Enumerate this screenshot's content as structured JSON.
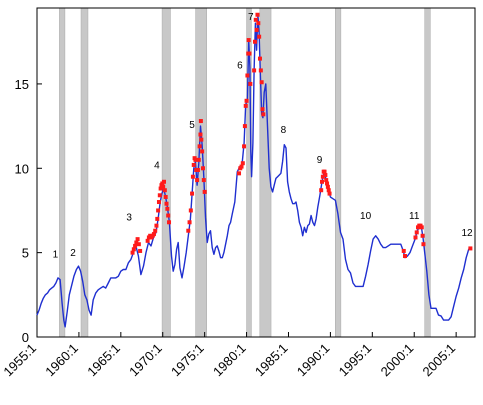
{
  "chart_data": {
    "type": "line",
    "title": "",
    "xlabel": "",
    "ylabel": "",
    "xlim": [
      1955.0,
      2007.25
    ],
    "ylim": [
      0,
      19.5
    ],
    "x_ticks": [
      "1955:1",
      "1960:1",
      "1965:1",
      "1970:1",
      "1975:1",
      "1980:1",
      "1985:1",
      "1990:1",
      "1995:1",
      "2000:1",
      "2005:1"
    ],
    "x_tick_values": [
      1955,
      1960,
      1965,
      1970,
      1975,
      1980,
      1985,
      1990,
      1995,
      2000,
      2005
    ],
    "y_ticks": [
      0,
      5,
      10,
      15
    ],
    "grid": false,
    "colors": {
      "line": "#1f2fd0",
      "markers": "#ff1a1a",
      "bands": "#c8c8c8"
    },
    "recession_bands": [
      [
        1957.67,
        1958.33
      ],
      [
        1960.25,
        1961.08
      ],
      [
        1969.92,
        1970.92
      ],
      [
        1973.92,
        1975.25
      ],
      [
        1980.0,
        1980.58
      ],
      [
        1981.58,
        1982.92
      ],
      [
        1990.58,
        1991.25
      ],
      [
        2001.25,
        2001.92
      ]
    ],
    "peak_labels": [
      {
        "text": "1",
        "x": 1957.2,
        "y": 4.7
      },
      {
        "text": "2",
        "x": 1959.3,
        "y": 4.8
      },
      {
        "text": "3",
        "x": 1966.0,
        "y": 6.9
      },
      {
        "text": "4",
        "x": 1969.3,
        "y": 10.0
      },
      {
        "text": "5",
        "x": 1973.5,
        "y": 12.4
      },
      {
        "text": "6",
        "x": 1979.2,
        "y": 15.9
      },
      {
        "text": "7",
        "x": 1980.5,
        "y": 18.8
      },
      {
        "text": "8",
        "x": 1984.4,
        "y": 12.1
      },
      {
        "text": "9",
        "x": 1988.7,
        "y": 10.3
      },
      {
        "text": "10",
        "x": 1994.2,
        "y": 7.0
      },
      {
        "text": "11",
        "x": 2000.0,
        "y": 7.0
      },
      {
        "text": "12",
        "x": 2006.3,
        "y": 6.0
      }
    ],
    "series": [
      {
        "values": [
          [
            1955.0,
            1.3
          ],
          [
            1955.25,
            1.6
          ],
          [
            1955.5,
            2.0
          ],
          [
            1955.75,
            2.3
          ],
          [
            1956.0,
            2.5
          ],
          [
            1956.25,
            2.6
          ],
          [
            1956.5,
            2.8
          ],
          [
            1956.75,
            2.9
          ],
          [
            1957.0,
            3.0
          ],
          [
            1957.25,
            3.2
          ],
          [
            1957.5,
            3.5
          ],
          [
            1957.75,
            3.4
          ],
          [
            1958.0,
            2.0
          ],
          [
            1958.2,
            1.0
          ],
          [
            1958.35,
            0.6
          ],
          [
            1958.6,
            1.5
          ],
          [
            1958.85,
            2.5
          ],
          [
            1959.1,
            3.0
          ],
          [
            1959.4,
            3.6
          ],
          [
            1959.7,
            4.0
          ],
          [
            1959.95,
            4.2
          ],
          [
            1960.2,
            3.9
          ],
          [
            1960.45,
            3.3
          ],
          [
            1960.7,
            2.5
          ],
          [
            1960.95,
            2.2
          ],
          [
            1961.2,
            1.6
          ],
          [
            1961.45,
            1.3
          ],
          [
            1961.7,
            2.2
          ],
          [
            1962.0,
            2.6
          ],
          [
            1962.3,
            2.8
          ],
          [
            1962.6,
            2.9
          ],
          [
            1962.9,
            3.0
          ],
          [
            1963.2,
            2.9
          ],
          [
            1963.5,
            3.2
          ],
          [
            1963.8,
            3.5
          ],
          [
            1964.1,
            3.5
          ],
          [
            1964.4,
            3.5
          ],
          [
            1964.7,
            3.6
          ],
          [
            1965.0,
            3.9
          ],
          [
            1965.3,
            4.0
          ],
          [
            1965.6,
            4.0
          ],
          [
            1965.9,
            4.4
          ],
          [
            1966.2,
            4.6
          ],
          [
            1966.5,
            5.0
          ],
          [
            1966.8,
            5.4
          ],
          [
            1967.1,
            4.8
          ],
          [
            1967.4,
            3.7
          ],
          [
            1967.7,
            4.2
          ],
          [
            1968.0,
            5.0
          ],
          [
            1968.3,
            5.6
          ],
          [
            1968.6,
            5.4
          ],
          [
            1968.9,
            5.9
          ],
          [
            1969.2,
            6.2
          ],
          [
            1969.45,
            7.0
          ],
          [
            1969.7,
            8.0
          ],
          [
            1969.9,
            8.5
          ],
          [
            1970.1,
            8.8
          ],
          [
            1970.3,
            8.4
          ],
          [
            1970.55,
            7.7
          ],
          [
            1970.8,
            6.8
          ],
          [
            1971.05,
            4.8
          ],
          [
            1971.25,
            3.9
          ],
          [
            1971.45,
            4.3
          ],
          [
            1971.65,
            5.2
          ],
          [
            1971.85,
            5.6
          ],
          [
            1972.05,
            4.1
          ],
          [
            1972.3,
            3.5
          ],
          [
            1972.55,
            4.2
          ],
          [
            1972.8,
            5.0
          ],
          [
            1973.05,
            6.0
          ],
          [
            1973.3,
            7.0
          ],
          [
            1973.5,
            8.5
          ],
          [
            1973.7,
            10.0
          ],
          [
            1973.9,
            10.4
          ],
          [
            1974.1,
            9.0
          ],
          [
            1974.3,
            10.3
          ],
          [
            1974.5,
            12.5
          ],
          [
            1974.7,
            11.4
          ],
          [
            1974.9,
            9.5
          ],
          [
            1975.1,
            7.1
          ],
          [
            1975.3,
            5.6
          ],
          [
            1975.5,
            6.1
          ],
          [
            1975.7,
            6.3
          ],
          [
            1975.9,
            5.3
          ],
          [
            1976.1,
            4.9
          ],
          [
            1976.3,
            5.3
          ],
          [
            1976.5,
            5.4
          ],
          [
            1976.7,
            5.1
          ],
          [
            1976.9,
            4.7
          ],
          [
            1977.1,
            4.7
          ],
          [
            1977.3,
            5.0
          ],
          [
            1977.5,
            5.5
          ],
          [
            1977.7,
            6.0
          ],
          [
            1977.9,
            6.6
          ],
          [
            1978.1,
            6.8
          ],
          [
            1978.3,
            7.3
          ],
          [
            1978.6,
            8.0
          ],
          [
            1978.9,
            9.8
          ],
          [
            1979.2,
            10.1
          ],
          [
            1979.45,
            10.2
          ],
          [
            1979.7,
            11.5
          ],
          [
            1979.9,
            13.8
          ],
          [
            1980.1,
            14.0
          ],
          [
            1980.25,
            17.6
          ],
          [
            1980.4,
            16.0
          ],
          [
            1980.5,
            11.0
          ],
          [
            1980.6,
            9.5
          ],
          [
            1980.75,
            11.5
          ],
          [
            1980.9,
            15.8
          ],
          [
            1981.05,
            18.6
          ],
          [
            1981.2,
            17.0
          ],
          [
            1981.35,
            19.1
          ],
          [
            1981.5,
            18.0
          ],
          [
            1981.65,
            15.5
          ],
          [
            1981.8,
            13.2
          ],
          [
            1981.95,
            13.0
          ],
          [
            1982.1,
            14.5
          ],
          [
            1982.3,
            15.0
          ],
          [
            1982.5,
            12.5
          ],
          [
            1982.7,
            10.0
          ],
          [
            1982.9,
            8.9
          ],
          [
            1983.1,
            8.6
          ],
          [
            1983.3,
            9.0
          ],
          [
            1983.5,
            9.4
          ],
          [
            1983.7,
            9.5
          ],
          [
            1983.9,
            9.6
          ],
          [
            1984.1,
            9.7
          ],
          [
            1984.3,
            10.4
          ],
          [
            1984.5,
            11.4
          ],
          [
            1984.7,
            11.2
          ],
          [
            1984.9,
            9.2
          ],
          [
            1985.1,
            8.6
          ],
          [
            1985.3,
            8.2
          ],
          [
            1985.5,
            7.9
          ],
          [
            1985.7,
            7.9
          ],
          [
            1985.9,
            8.0
          ],
          [
            1986.1,
            7.5
          ],
          [
            1986.3,
            6.8
          ],
          [
            1986.5,
            6.5
          ],
          [
            1986.7,
            6.0
          ],
          [
            1986.9,
            6.5
          ],
          [
            1987.1,
            6.2
          ],
          [
            1987.3,
            6.6
          ],
          [
            1987.5,
            6.7
          ],
          [
            1987.7,
            7.2
          ],
          [
            1987.9,
            6.8
          ],
          [
            1988.1,
            6.6
          ],
          [
            1988.3,
            7.0
          ],
          [
            1988.5,
            7.7
          ],
          [
            1988.75,
            8.4
          ],
          [
            1989.0,
            9.2
          ],
          [
            1989.25,
            9.8
          ],
          [
            1989.5,
            9.3
          ],
          [
            1989.75,
            8.8
          ],
          [
            1990.0,
            8.3
          ],
          [
            1990.3,
            8.2
          ],
          [
            1990.6,
            8.1
          ],
          [
            1990.9,
            7.3
          ],
          [
            1991.2,
            6.2
          ],
          [
            1991.5,
            5.8
          ],
          [
            1991.8,
            4.6
          ],
          [
            1992.1,
            4.0
          ],
          [
            1992.4,
            3.8
          ],
          [
            1992.7,
            3.2
          ],
          [
            1993.0,
            3.0
          ],
          [
            1993.3,
            3.0
          ],
          [
            1993.6,
            3.0
          ],
          [
            1993.9,
            3.0
          ],
          [
            1994.2,
            3.6
          ],
          [
            1994.5,
            4.3
          ],
          [
            1994.8,
            5.1
          ],
          [
            1995.1,
            5.8
          ],
          [
            1995.4,
            6.0
          ],
          [
            1995.7,
            5.8
          ],
          [
            1996.0,
            5.5
          ],
          [
            1996.3,
            5.3
          ],
          [
            1996.6,
            5.3
          ],
          [
            1996.9,
            5.4
          ],
          [
            1997.2,
            5.5
          ],
          [
            1997.5,
            5.5
          ],
          [
            1997.8,
            5.5
          ],
          [
            1998.1,
            5.5
          ],
          [
            1998.4,
            5.5
          ],
          [
            1998.7,
            5.1
          ],
          [
            1998.9,
            4.7
          ],
          [
            1999.2,
            4.8
          ],
          [
            1999.5,
            5.0
          ],
          [
            1999.8,
            5.4
          ],
          [
            2000.1,
            5.8
          ],
          [
            2000.35,
            6.3
          ],
          [
            2000.6,
            6.5
          ],
          [
            2000.85,
            6.5
          ],
          [
            2001.05,
            5.9
          ],
          [
            2001.25,
            5.0
          ],
          [
            2001.5,
            3.9
          ],
          [
            2001.75,
            2.5
          ],
          [
            2002.0,
            1.7
          ],
          [
            2002.3,
            1.7
          ],
          [
            2002.6,
            1.7
          ],
          [
            2002.9,
            1.3
          ],
          [
            2003.2,
            1.25
          ],
          [
            2003.5,
            1.0
          ],
          [
            2003.8,
            1.0
          ],
          [
            2004.1,
            1.0
          ],
          [
            2004.4,
            1.2
          ],
          [
            2004.7,
            1.8
          ],
          [
            2005.0,
            2.4
          ],
          [
            2005.3,
            2.9
          ],
          [
            2005.6,
            3.5
          ],
          [
            2005.9,
            4.0
          ],
          [
            2006.2,
            4.7
          ],
          [
            2006.5,
            5.2
          ],
          [
            2006.7,
            5.25
          ]
        ]
      }
    ],
    "highlighted_points": [
      [
        1966.4,
        5.0
      ],
      [
        1966.55,
        5.2
      ],
      [
        1966.7,
        5.4
      ],
      [
        1966.85,
        5.6
      ],
      [
        1967.0,
        5.8
      ],
      [
        1967.15,
        5.5
      ],
      [
        1967.3,
        5.1
      ],
      [
        1968.2,
        5.7
      ],
      [
        1968.35,
        5.9
      ],
      [
        1968.5,
        6.0
      ],
      [
        1968.65,
        5.9
      ],
      [
        1968.8,
        6.0
      ],
      [
        1968.95,
        6.1
      ],
      [
        1969.1,
        6.3
      ],
      [
        1969.25,
        6.6
      ],
      [
        1969.35,
        7.0
      ],
      [
        1969.45,
        7.5
      ],
      [
        1969.55,
        8.0
      ],
      [
        1969.65,
        8.4
      ],
      [
        1969.75,
        8.8
      ],
      [
        1969.85,
        9.0
      ],
      [
        1969.95,
        9.1
      ],
      [
        1970.05,
        8.9
      ],
      [
        1970.15,
        9.2
      ],
      [
        1970.25,
        8.7
      ],
      [
        1970.35,
        8.3
      ],
      [
        1970.45,
        7.9
      ],
      [
        1970.55,
        7.6
      ],
      [
        1970.65,
        7.2
      ],
      [
        1970.75,
        6.8
      ],
      [
        1973.05,
        6.3
      ],
      [
        1973.2,
        6.8
      ],
      [
        1973.35,
        7.5
      ],
      [
        1973.5,
        8.5
      ],
      [
        1973.6,
        9.5
      ],
      [
        1973.7,
        10.2
      ],
      [
        1973.8,
        10.6
      ],
      [
        1973.9,
        10.5
      ],
      [
        1974.0,
        9.9
      ],
      [
        1974.1,
        9.3
      ],
      [
        1974.2,
        9.9
      ],
      [
        1974.3,
        10.5
      ],
      [
        1974.4,
        11.3
      ],
      [
        1974.5,
        12.0
      ],
      [
        1974.55,
        12.8
      ],
      [
        1974.6,
        11.7
      ],
      [
        1974.7,
        11.0
      ],
      [
        1974.8,
        10.0
      ],
      [
        1974.9,
        9.3
      ],
      [
        1975.0,
        8.6
      ],
      [
        1979.1,
        9.7
      ],
      [
        1979.25,
        10.0
      ],
      [
        1979.4,
        10.1
      ],
      [
        1979.55,
        10.3
      ],
      [
        1979.7,
        11.3
      ],
      [
        1979.8,
        12.5
      ],
      [
        1979.9,
        13.7
      ],
      [
        1980.0,
        14.0
      ],
      [
        1980.1,
        15.5
      ],
      [
        1980.2,
        16.8
      ],
      [
        1980.25,
        17.6
      ],
      [
        1980.35,
        16.8
      ],
      [
        1980.45,
        15.0
      ],
      [
        1980.9,
        15.8
      ],
      [
        1981.0,
        17.5
      ],
      [
        1981.1,
        18.8
      ],
      [
        1981.2,
        18.2
      ],
      [
        1981.3,
        19.1
      ],
      [
        1981.4,
        18.6
      ],
      [
        1981.5,
        17.8
      ],
      [
        1981.6,
        16.5
      ],
      [
        1981.7,
        15.8
      ],
      [
        1981.8,
        15.1
      ],
      [
        1981.9,
        13.5
      ],
      [
        1982.0,
        13.2
      ],
      [
        1988.9,
        8.7
      ],
      [
        1989.0,
        9.2
      ],
      [
        1989.1,
        9.5
      ],
      [
        1989.2,
        9.8
      ],
      [
        1989.3,
        9.8
      ],
      [
        1989.4,
        9.6
      ],
      [
        1989.5,
        9.3
      ],
      [
        1989.6,
        9.1
      ],
      [
        1989.7,
        8.9
      ],
      [
        1989.8,
        8.7
      ],
      [
        1989.9,
        8.5
      ],
      [
        1998.75,
        5.1
      ],
      [
        1998.9,
        4.8
      ],
      [
        2000.15,
        5.9
      ],
      [
        2000.3,
        6.2
      ],
      [
        2000.45,
        6.5
      ],
      [
        2000.6,
        6.6
      ],
      [
        2000.75,
        6.6
      ],
      [
        2000.9,
        6.5
      ],
      [
        2001.0,
        6.0
      ],
      [
        2001.1,
        5.5
      ],
      [
        2006.7,
        5.25
      ]
    ]
  }
}
